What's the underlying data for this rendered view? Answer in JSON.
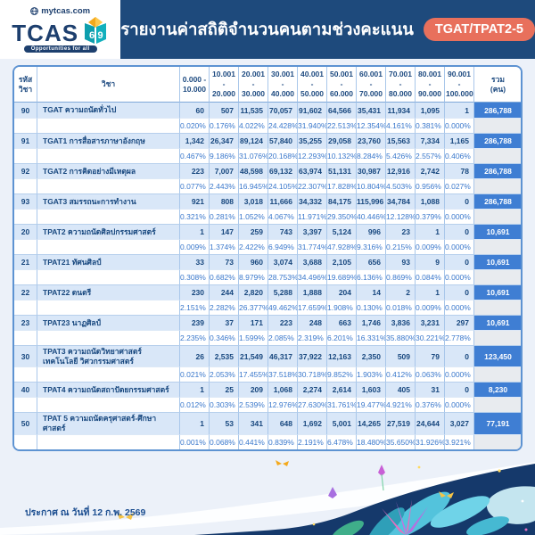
{
  "logo": {
    "site": "mytcas.com",
    "name": "TCAS",
    "book_number": "69",
    "tagline": "Opportunities for all"
  },
  "header": {
    "title": "รายงานค่าสถิติจำนวนคนตามช่วงคะแนน",
    "badge": "TGAT/TPAT2-5"
  },
  "colors": {
    "header_navy": "#1e4a7c",
    "badge_coral": "#e8705c",
    "total_blue": "#3f7ed3",
    "count_row_blue": "#d9e7f8",
    "percent_text_blue": "#3a78cc",
    "footer_navy": "#15396b",
    "page_bg": "#ecf1f9"
  },
  "table": {
    "code_header": "รหัส\nวิชา",
    "subject_header": "วิชา",
    "range_headers": [
      "0.000 -\n10.000",
      "10.001 -\n20.000",
      "20.001 -\n30.000",
      "30.001 -\n40.000",
      "40.001 -\n50.000",
      "50.001 -\n60.000",
      "60.001 -\n70.000",
      "70.001 -\n80.000",
      "80.001 -\n90.000",
      "90.001 -\n100.000"
    ],
    "total_header": "รวม\n(คน)",
    "rows": [
      {
        "code": "90",
        "subject": "TGAT ความถนัดทั่วไป",
        "counts": [
          "60",
          "507",
          "11,535",
          "70,057",
          "91,602",
          "64,566",
          "35,431",
          "11,934",
          "1,095",
          "1"
        ],
        "percents": [
          "0.020%",
          "0.176%",
          "4.022%",
          "24.428%",
          "31.940%",
          "22.513%",
          "12.354%",
          "4.161%",
          "0.381%",
          "0.000%"
        ],
        "total": "286,788"
      },
      {
        "code": "91",
        "subject": "TGAT1 การสื่อสารภาษาอังกฤษ",
        "counts": [
          "1,342",
          "26,347",
          "89,124",
          "57,840",
          "35,255",
          "29,058",
          "23,760",
          "15,563",
          "7,334",
          "1,165"
        ],
        "percents": [
          "0.467%",
          "9.186%",
          "31.076%",
          "20.168%",
          "12.293%",
          "10.132%",
          "8.284%",
          "5.426%",
          "2.557%",
          "0.406%"
        ],
        "total": "286,788"
      },
      {
        "code": "92",
        "subject": "TGAT2 การคิดอย่างมีเหตุผล",
        "counts": [
          "223",
          "7,007",
          "48,598",
          "69,132",
          "63,974",
          "51,131",
          "30,987",
          "12,916",
          "2,742",
          "78"
        ],
        "percents": [
          "0.077%",
          "2.443%",
          "16.945%",
          "24.105%",
          "22.307%",
          "17.828%",
          "10.804%",
          "4.503%",
          "0.956%",
          "0.027%"
        ],
        "total": "286,788"
      },
      {
        "code": "93",
        "subject": "TGAT3 สมรรถนะการทำงาน",
        "counts": [
          "921",
          "808",
          "3,018",
          "11,666",
          "34,332",
          "84,175",
          "115,996",
          "34,784",
          "1,088",
          "0"
        ],
        "percents": [
          "0.321%",
          "0.281%",
          "1.052%",
          "4.067%",
          "11.971%",
          "29.350%",
          "40.446%",
          "12.128%",
          "0.379%",
          "0.000%"
        ],
        "total": "286,788"
      },
      {
        "code": "20",
        "subject": "TPAT2 ความถนัดศิลปกรรมศาสตร์",
        "counts": [
          "1",
          "147",
          "259",
          "743",
          "3,397",
          "5,124",
          "996",
          "23",
          "1",
          "0"
        ],
        "percents": [
          "0.009%",
          "1.374%",
          "2.422%",
          "6.949%",
          "31.774%",
          "47.928%",
          "9.316%",
          "0.215%",
          "0.009%",
          "0.000%"
        ],
        "total": "10,691"
      },
      {
        "code": "21",
        "subject": "TPAT21 ทัศนศิลป์",
        "counts": [
          "33",
          "73",
          "960",
          "3,074",
          "3,688",
          "2,105",
          "656",
          "93",
          "9",
          "0"
        ],
        "percents": [
          "0.308%",
          "0.682%",
          "8.979%",
          "28.753%",
          "34.496%",
          "19.689%",
          "6.136%",
          "0.869%",
          "0.084%",
          "0.000%"
        ],
        "total": "10,691"
      },
      {
        "code": "22",
        "subject": "TPAT22 ดนตรี",
        "counts": [
          "230",
          "244",
          "2,820",
          "5,288",
          "1,888",
          "204",
          "14",
          "2",
          "1",
          "0"
        ],
        "percents": [
          "2.151%",
          "2.282%",
          "26.377%",
          "49.462%",
          "17.659%",
          "1.908%",
          "0.130%",
          "0.018%",
          "0.009%",
          "0.000%"
        ],
        "total": "10,691"
      },
      {
        "code": "23",
        "subject": "TPAT23 นาฏศิลป์",
        "counts": [
          "239",
          "37",
          "171",
          "223",
          "248",
          "663",
          "1,746",
          "3,836",
          "3,231",
          "297"
        ],
        "percents": [
          "2.235%",
          "0.346%",
          "1.599%",
          "2.085%",
          "2.319%",
          "6.201%",
          "16.331%",
          "35.880%",
          "30.221%",
          "2.778%"
        ],
        "total": "10,691"
      },
      {
        "code": "30",
        "subject": "TPAT3 ความถนัดวิทยาศาสตร์ เทคโนโลยี วิศวกรรมศาสตร์",
        "counts": [
          "26",
          "2,535",
          "21,549",
          "46,317",
          "37,922",
          "12,163",
          "2,350",
          "509",
          "79",
          "0"
        ],
        "percents": [
          "0.021%",
          "2.053%",
          "17.455%",
          "37.518%",
          "30.718%",
          "9.852%",
          "1.903%",
          "0.412%",
          "0.063%",
          "0.000%"
        ],
        "total": "123,450"
      },
      {
        "code": "40",
        "subject": "TPAT4 ความถนัดสถาปัตยกรรมศาสตร์",
        "counts": [
          "1",
          "25",
          "209",
          "1,068",
          "2,274",
          "2,614",
          "1,603",
          "405",
          "31",
          "0"
        ],
        "percents": [
          "0.012%",
          "0.303%",
          "2.539%",
          "12.976%",
          "27.630%",
          "31.761%",
          "19.477%",
          "4.921%",
          "0.376%",
          "0.000%"
        ],
        "total": "8,230"
      },
      {
        "code": "50",
        "subject": "TPAT 5 ความถนัดครุศาสตร์-ศึกษาศาสตร์",
        "counts": [
          "1",
          "53",
          "341",
          "648",
          "1,692",
          "5,001",
          "14,265",
          "27,519",
          "24,644",
          "3,027"
        ],
        "percents": [
          "0.001%",
          "0.068%",
          "0.441%",
          "0.839%",
          "2.191%",
          "6.478%",
          "18.480%",
          "35.650%",
          "31.926%",
          "3.921%"
        ],
        "total": "77,191"
      }
    ]
  },
  "footer": {
    "date": "ประกาศ ณ วันที่ 12 ก.พ. 2569"
  }
}
